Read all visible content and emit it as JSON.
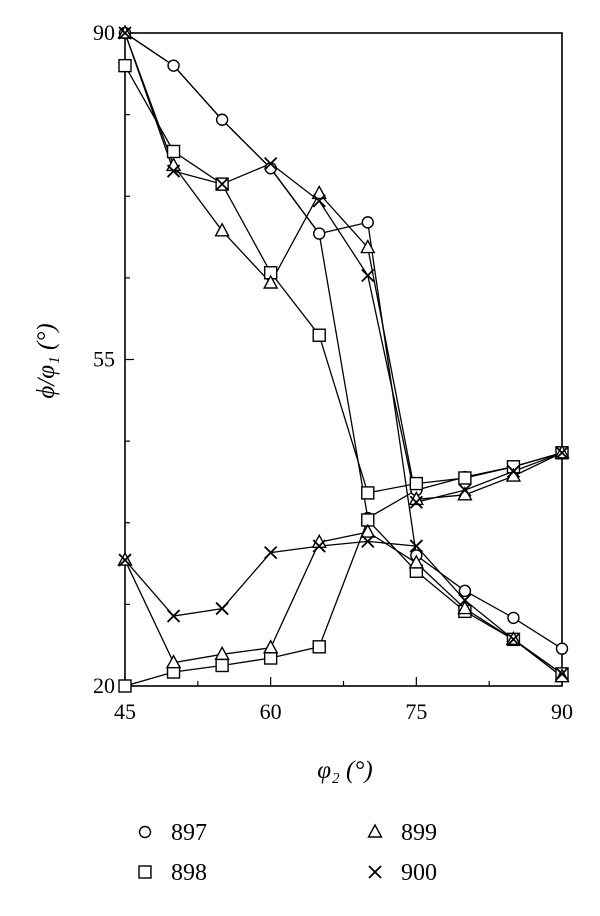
{
  "chart_data": {
    "type": "line",
    "xlabel": "φ₂ (°)",
    "ylabel": "ϕ/φ₁ (°)",
    "xlim": [
      45,
      90
    ],
    "ylim": [
      20,
      90
    ],
    "x_ticks": [
      "45",
      "60",
      "75",
      "90"
    ],
    "y_ticks": [
      "20",
      "55",
      "90"
    ],
    "x_tick_values": [
      45,
      60,
      75,
      90
    ],
    "y_tick_values": [
      20,
      55,
      90
    ],
    "grid": false,
    "legend_position": "bottom",
    "series": [
      {
        "name": "897",
        "marker": "circle",
        "branches": [
          [
            [
              45,
              90
            ],
            [
              50,
              86.5
            ],
            [
              55,
              80.7
            ],
            [
              60,
              75.5
            ],
            [
              65,
              68.5
            ],
            [
              70,
              69.7
            ],
            [
              75,
              34
            ],
            [
              80,
              30.2
            ],
            [
              85,
              27.3
            ],
            [
              90,
              24
            ]
          ],
          [
            [
              45,
              90
            ],
            [
              50,
              86.5
            ],
            [
              55,
              80.7
            ],
            [
              60,
              75.5
            ],
            [
              65,
              68.5
            ],
            [
              70,
              38
            ],
            [
              75,
              41
            ],
            [
              80,
              42.4
            ],
            [
              85,
              43.5
            ],
            [
              90,
              45
            ]
          ]
        ]
      },
      {
        "name": "898",
        "marker": "square",
        "branches": [
          [
            [
              45,
              86.5
            ],
            [
              50,
              77.3
            ],
            [
              55,
              73.8
            ],
            [
              60,
              64.3
            ],
            [
              65,
              57.6
            ],
            [
              70,
              40.7
            ],
            [
              75,
              41.7
            ],
            [
              80,
              42.3
            ],
            [
              85,
              43.5
            ],
            [
              90,
              45
            ]
          ],
          [
            [
              45,
              20
            ],
            [
              50,
              21.5
            ],
            [
              55,
              22.2
            ],
            [
              60,
              23
            ],
            [
              65,
              24.2
            ],
            [
              70,
              37.8
            ],
            [
              75,
              32.3
            ],
            [
              80,
              28
            ],
            [
              85,
              25
            ],
            [
              90,
              21.3
            ]
          ]
        ]
      },
      {
        "name": "899",
        "marker": "triangle",
        "branches": [
          [
            [
              45,
              90
            ],
            [
              50,
              75.8
            ],
            [
              55,
              68.8
            ],
            [
              60,
              63.2
            ],
            [
              65,
              72.8
            ],
            [
              70,
              67
            ],
            [
              75,
              40
            ],
            [
              80,
              40.5
            ],
            [
              85,
              42.5
            ],
            [
              90,
              45
            ]
          ],
          [
            [
              45,
              33.5
            ],
            [
              50,
              22.5
            ],
            [
              55,
              23.4
            ],
            [
              60,
              24.1
            ],
            [
              65,
              35.4
            ],
            [
              70,
              36.5
            ],
            [
              75,
              33.2
            ],
            [
              80,
              28.3
            ],
            [
              85,
              25
            ],
            [
              90,
              21
            ]
          ]
        ]
      },
      {
        "name": "900",
        "marker": "x",
        "branches": [
          [
            [
              45,
              90
            ],
            [
              50,
              75.2
            ],
            [
              55,
              73.8
            ],
            [
              60,
              76
            ],
            [
              65,
              72
            ],
            [
              70,
              64
            ],
            [
              75,
              39.7
            ],
            [
              80,
              41
            ],
            [
              85,
              43
            ],
            [
              90,
              45
            ]
          ],
          [
            [
              45,
              33.5
            ],
            [
              50,
              27.5
            ],
            [
              55,
              28.3
            ],
            [
              60,
              34.3
            ],
            [
              65,
              35
            ],
            [
              70,
              35.5
            ],
            [
              75,
              35
            ],
            [
              80,
              29.2
            ],
            [
              85,
              25
            ],
            [
              90,
              21.3
            ]
          ]
        ]
      }
    ]
  }
}
